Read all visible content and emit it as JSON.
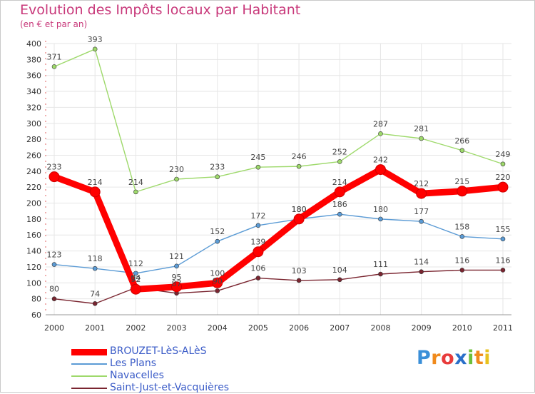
{
  "chart_data": {
    "type": "line",
    "title": "Evolution des Impôts locaux par Habitant",
    "subtitle": "(en € et par an)",
    "x": [
      "2000",
      "2001",
      "2002",
      "2003",
      "2004",
      "2005",
      "2006",
      "2007",
      "2008",
      "2009",
      "2010",
      "2011"
    ],
    "ylim": [
      60,
      400
    ],
    "yticks": [
      60,
      80,
      100,
      120,
      140,
      160,
      180,
      200,
      220,
      240,
      260,
      280,
      300,
      320,
      340,
      360,
      380,
      400
    ],
    "series": [
      {
        "name": "BROUZET-LèS-ALèS",
        "color": "#ff0000",
        "values": [
          233,
          214,
          92,
          95,
          100,
          139,
          180,
          214,
          242,
          212,
          215,
          220
        ]
      },
      {
        "name": "Les Plans",
        "color": "#5b9bd5",
        "values": [
          123,
          118,
          112,
          121,
          152,
          172,
          180,
          186,
          180,
          177,
          158,
          155
        ]
      },
      {
        "name": "Navacelles",
        "color": "#9ed96b",
        "values": [
          371,
          393,
          214,
          230,
          233,
          245,
          246,
          252,
          287,
          281,
          266,
          249
        ]
      },
      {
        "name": "Saint-Just-et-Vacquières",
        "color": "#7a2530",
        "values": [
          80,
          74,
          94,
          87,
          90,
          106,
          103,
          104,
          111,
          114,
          116,
          116
        ]
      }
    ]
  },
  "logo": {
    "text": "Proxiti"
  }
}
